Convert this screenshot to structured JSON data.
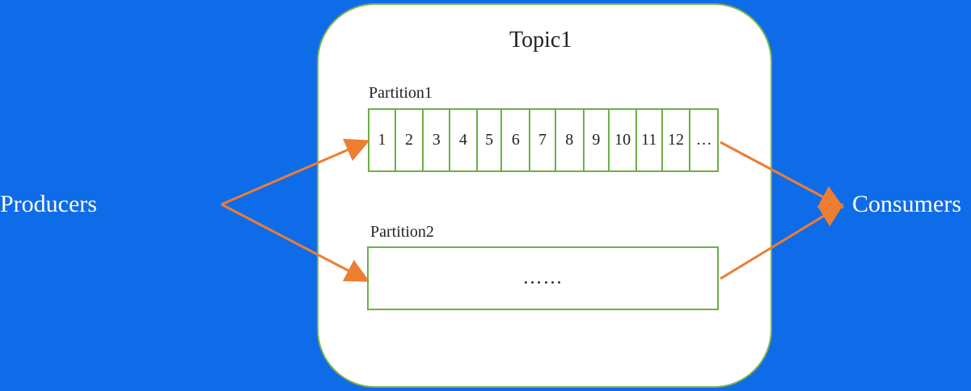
{
  "producers_label": "Producers",
  "consumers_label": "Consumers",
  "topic": {
    "title": "Topic1"
  },
  "partitions": [
    {
      "label": "Partition1",
      "cells": [
        "1",
        "2",
        "3",
        "4",
        "5",
        "6",
        "7",
        "8",
        "9",
        "10",
        "11",
        "12",
        "…"
      ]
    },
    {
      "label": "Partition2",
      "content": "……"
    }
  ],
  "colors": {
    "background": "#0f6ce8",
    "box_fill": "#ffffff",
    "box_border": "#6cb04a",
    "arrow": "#ed7d31",
    "text": "#222222",
    "side_text": "#ffffff"
  }
}
